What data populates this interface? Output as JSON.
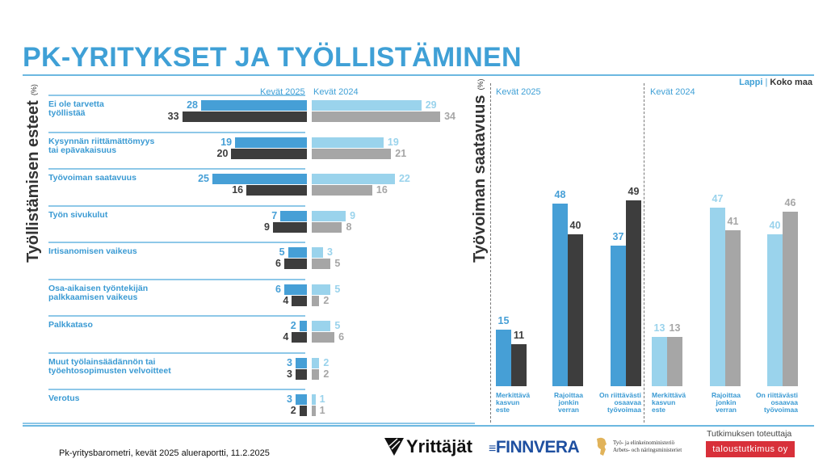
{
  "page": {
    "title": "PK-YRITYKSET JA TYÖLLISTÄMINEN",
    "footer": "Pk-yritysbarometri, kevät 2025 alueraportti, 11.2.2025",
    "legend": {
      "region": "Lappi",
      "separator": "|",
      "country": "Koko maa"
    },
    "logos": {
      "yrittajat": "Yrittäjät",
      "finnvera": "FINNVERA",
      "tem_line1": "Työ- ja elinkeinoministeriö",
      "tem_line2": "Arbets- och näringsministeriet",
      "research_by": "Tutkimuksen toteuttaja",
      "taloustutkimus": "taloustutkimus oy"
    },
    "colors": {
      "accent": "#3fa0d6",
      "lappi_2025": "#469fd6",
      "koko_2025": "#3d3d3d",
      "lappi_2024": "#9ad3ec",
      "koko_2024": "#a6a6a6",
      "badge_red": "#d8303a"
    }
  },
  "chart_data": [
    {
      "type": "bar",
      "orientation": "horizontal",
      "title": "Työllistämisen esteet",
      "unit": "(%)",
      "period_labels": [
        "Kevät 2025",
        "Kevät 2024"
      ],
      "categories": [
        "Ei ole tarvetta\ntyöllistää",
        "Kysynnän riittämättömyys\ntai epävakaisuus",
        "Työvoiman saatavuus",
        "Työn sivukulut",
        "Irtisanomisen vaikeus",
        "Osa-aikaisen työntekijän\npalkkaamisen vaikeus",
        "Palkkataso",
        "Muut työlainsäädännön tai\ntyöehtosopimusten velvoitteet",
        "Verotus"
      ],
      "series": [
        {
          "name": "Lappi, Kevät 2025",
          "values": [
            28,
            19,
            25,
            7,
            5,
            6,
            2,
            3,
            3
          ]
        },
        {
          "name": "Koko maa, Kevät 2025",
          "values": [
            33,
            20,
            16,
            9,
            6,
            4,
            4,
            3,
            2
          ]
        },
        {
          "name": "Lappi, Kevät 2024",
          "values": [
            29,
            19,
            22,
            9,
            3,
            5,
            5,
            2,
            1
          ]
        },
        {
          "name": "Koko maa, Kevät 2024",
          "values": [
            34,
            21,
            16,
            8,
            5,
            2,
            6,
            2,
            1
          ]
        }
      ],
      "grid": false
    },
    {
      "type": "bar",
      "orientation": "vertical",
      "title": "Työvoiman saatavuus",
      "unit": "(%)",
      "panels": [
        {
          "label": "Kevät 2025",
          "categories": [
            "Merkittävä\nkasvun\neste",
            "Rajoittaa\njonkin\nverran",
            "On riittävästi\nosaavaa\ntyövoimaa"
          ],
          "series": [
            {
              "name": "Lappi",
              "values": [
                15,
                48,
                37
              ]
            },
            {
              "name": "Koko maa",
              "values": [
                11,
                40,
                49
              ]
            }
          ]
        },
        {
          "label": "Kevät 2024",
          "categories": [
            "Merkittävä\nkasvun\neste",
            "Rajoittaa\njonkin\nverran",
            "On riittävästi\nosaavaa\ntyövoimaa"
          ],
          "series": [
            {
              "name": "Lappi",
              "values": [
                13,
                47,
                40
              ]
            },
            {
              "name": "Koko maa",
              "values": [
                13,
                41,
                46
              ]
            }
          ]
        }
      ],
      "legend": [
        "Lappi",
        "Koko maa"
      ],
      "legend_position": "top-right",
      "grid": false
    }
  ]
}
